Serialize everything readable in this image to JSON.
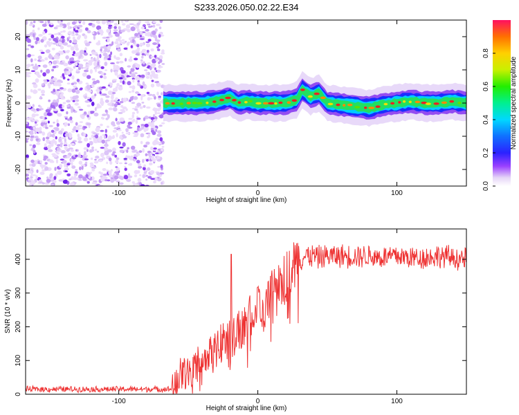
{
  "figure_title": "S233.2026.050.02.22.E34",
  "chart_data": [
    {
      "type": "heatmap",
      "xlabel": "Height of straight line (km)",
      "ylabel": "Frequency (Hz)",
      "xlim": [
        -167,
        150
      ],
      "ylim": [
        -25,
        25
      ],
      "xticks": [
        -100,
        0,
        100
      ],
      "yticks": [
        -20,
        -10,
        0,
        10,
        20
      ],
      "noise_region_x": [
        -167,
        -68
      ],
      "signal_ridge": {
        "x": [
          -68,
          -60,
          -50,
          -40,
          -30,
          -20,
          -14,
          -8,
          0,
          10,
          20,
          28,
          32,
          38,
          44,
          50,
          60,
          70,
          80,
          90,
          100,
          110,
          120,
          130,
          140,
          150
        ],
        "freq": [
          0,
          0,
          0,
          0,
          0.5,
          1.5,
          0,
          0.5,
          0,
          0,
          0,
          1,
          4,
          2,
          3,
          0,
          -0.5,
          -1,
          -1.5,
          -0.5,
          0,
          0.5,
          0,
          0,
          0.5,
          0
        ]
      },
      "colorbar": {
        "label": "Normalized spectral amplitude",
        "range": [
          0,
          1
        ],
        "ticks": [
          "0.0",
          "0.2",
          "0.4",
          "0.6",
          "0.8"
        ]
      }
    },
    {
      "type": "line",
      "xlabel": "Height of straight line (km)",
      "ylabel": "SNR (10 * v/v)",
      "xlim": [
        -167,
        150
      ],
      "ylim": [
        0,
        490
      ],
      "xticks": [
        -100,
        0,
        100
      ],
      "yticks": [
        0,
        100,
        200,
        300,
        400
      ],
      "series": [
        {
          "name": "SNR",
          "color": "#ee3333",
          "x": [
            -167,
            -100,
            -68,
            -62,
            -55,
            -50,
            -45,
            -40,
            -35,
            -30,
            -25,
            -20,
            -15,
            -10,
            -5,
            0,
            5,
            10,
            15,
            20,
            25,
            30,
            35,
            40,
            45,
            50,
            60,
            70,
            80,
            90,
            100,
            110,
            120,
            130,
            140,
            150
          ],
          "values": [
            15,
            15,
            15,
            15,
            60,
            70,
            80,
            100,
            120,
            140,
            170,
            180,
            190,
            210,
            230,
            250,
            270,
            300,
            320,
            350,
            380,
            400,
            410,
            410,
            405,
            410,
            410,
            410,
            410,
            405,
            410,
            405,
            405,
            410,
            405,
            400
          ]
        }
      ],
      "spike": {
        "x": -19,
        "value": 415
      }
    }
  ]
}
